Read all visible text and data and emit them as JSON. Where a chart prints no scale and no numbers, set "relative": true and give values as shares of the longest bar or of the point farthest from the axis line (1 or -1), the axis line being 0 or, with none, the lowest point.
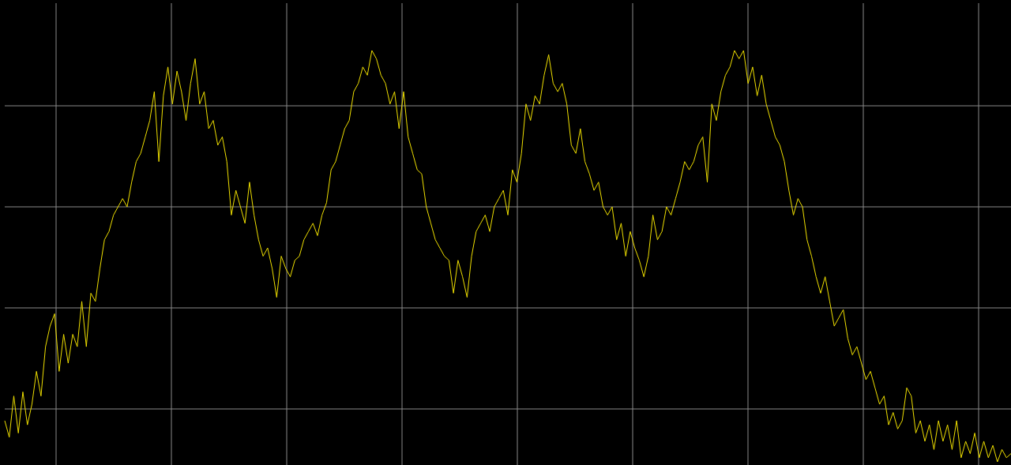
{
  "chart_data": {
    "type": "line",
    "relative": true,
    "grid": true,
    "marker": "none",
    "line_style": "solid",
    "categories": [
      null,
      null,
      null,
      null,
      null,
      null,
      null,
      null,
      null,
      null,
      null,
      null,
      null,
      null,
      null,
      null,
      null,
      null,
      null,
      null,
      null,
      null,
      null,
      null,
      null,
      null,
      null,
      null,
      null,
      null,
      null,
      null,
      null,
      null,
      null,
      null,
      null,
      null,
      null,
      null,
      null,
      null,
      null,
      null,
      null,
      null,
      null,
      null,
      null,
      null,
      null,
      null,
      null,
      null,
      null,
      null,
      null,
      null,
      null,
      null,
      null,
      null,
      null,
      null,
      null,
      null,
      null,
      null,
      null,
      null,
      null,
      null,
      null,
      null,
      null,
      null,
      null,
      null,
      null,
      null,
      null,
      null,
      null,
      null,
      null,
      null,
      null,
      null,
      null,
      null,
      null,
      null,
      null,
      null,
      null,
      null,
      null,
      null,
      null,
      null,
      null,
      null,
      null,
      null,
      null,
      null,
      null,
      null,
      null,
      null,
      null,
      null,
      null,
      null,
      null,
      null,
      null,
      null,
      null,
      null,
      null,
      null,
      null,
      null,
      null,
      null,
      null,
      null,
      null,
      null,
      null,
      null,
      null,
      null,
      null,
      null,
      null,
      null,
      null,
      null,
      null,
      null,
      null,
      null,
      null,
      null,
      null,
      null,
      null,
      null,
      null,
      null,
      null,
      null,
      null,
      null,
      null,
      null,
      null,
      null,
      null,
      null,
      null,
      null,
      null,
      null,
      null,
      null,
      null,
      null,
      null,
      null,
      null,
      null,
      null,
      null,
      null,
      null,
      null,
      null,
      null,
      null,
      null,
      null,
      null,
      null,
      null,
      null,
      null,
      null,
      null,
      null,
      null,
      null,
      null,
      null,
      null,
      null,
      null,
      null,
      null,
      null,
      null,
      null,
      null,
      null,
      null,
      null,
      null,
      null,
      null,
      null,
      null,
      null,
      null,
      null,
      null,
      null,
      null,
      null,
      null,
      null,
      null
    ],
    "series": [
      {
        "color": "#f0e000",
        "values": [
          0.1,
          0.06,
          0.16,
          0.07,
          0.17,
          0.09,
          0.14,
          0.22,
          0.16,
          0.28,
          0.33,
          0.36,
          0.22,
          0.31,
          0.24,
          0.31,
          0.28,
          0.39,
          0.28,
          0.41,
          0.39,
          0.47,
          0.54,
          0.56,
          0.6,
          0.62,
          0.64,
          0.62,
          0.68,
          0.73,
          0.75,
          0.79,
          0.83,
          0.9,
          0.73,
          0.89,
          0.96,
          0.87,
          0.95,
          0.9,
          0.83,
          0.92,
          0.98,
          0.87,
          0.9,
          0.81,
          0.83,
          0.77,
          0.79,
          0.73,
          0.6,
          0.66,
          0.62,
          0.58,
          0.68,
          0.6,
          0.54,
          0.5,
          0.52,
          0.47,
          0.4,
          0.5,
          0.47,
          0.45,
          0.49,
          0.5,
          0.54,
          0.56,
          0.58,
          0.55,
          0.6,
          0.63,
          0.71,
          0.73,
          0.77,
          0.81,
          0.83,
          0.9,
          0.92,
          0.96,
          0.94,
          1.0,
          0.98,
          0.94,
          0.92,
          0.87,
          0.9,
          0.81,
          0.9,
          0.79,
          0.75,
          0.71,
          0.7,
          0.62,
          0.58,
          0.54,
          0.52,
          0.5,
          0.49,
          0.41,
          0.49,
          0.45,
          0.4,
          0.5,
          0.56,
          0.58,
          0.6,
          0.56,
          0.62,
          0.64,
          0.66,
          0.6,
          0.71,
          0.68,
          0.75,
          0.87,
          0.83,
          0.89,
          0.87,
          0.94,
          0.99,
          0.92,
          0.9,
          0.92,
          0.87,
          0.77,
          0.75,
          0.81,
          0.73,
          0.7,
          0.66,
          0.68,
          0.62,
          0.6,
          0.62,
          0.54,
          0.58,
          0.5,
          0.56,
          0.52,
          0.49,
          0.45,
          0.5,
          0.6,
          0.54,
          0.56,
          0.62,
          0.6,
          0.64,
          0.68,
          0.73,
          0.71,
          0.73,
          0.77,
          0.79,
          0.68,
          0.87,
          0.83,
          0.9,
          0.94,
          0.96,
          1.0,
          0.98,
          1.0,
          0.92,
          0.96,
          0.89,
          0.94,
          0.87,
          0.83,
          0.79,
          0.77,
          0.73,
          0.66,
          0.6,
          0.64,
          0.62,
          0.54,
          0.5,
          0.45,
          0.41,
          0.45,
          0.39,
          0.33,
          0.35,
          0.37,
          0.3,
          0.26,
          0.28,
          0.24,
          0.2,
          0.22,
          0.18,
          0.14,
          0.16,
          0.09,
          0.12,
          0.08,
          0.1,
          0.18,
          0.16,
          0.07,
          0.1,
          0.05,
          0.09,
          0.03,
          0.1,
          0.05,
          0.09,
          0.03,
          0.1,
          0.01,
          0.05,
          0.02,
          0.07,
          0.01,
          0.05,
          0.01,
          0.04,
          0,
          0.03,
          0.01,
          0.02
        ]
      }
    ]
  }
}
